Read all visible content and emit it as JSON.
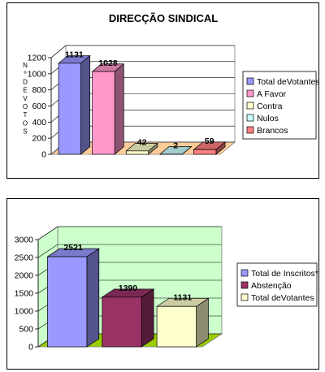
{
  "chart_data": [
    {
      "type": "bar",
      "title": "DIRECÇÃO SINDICAL",
      "ylabel": "Nº DE VOTOS",
      "ylim": [
        0,
        1200
      ],
      "yticks": [
        0,
        200,
        400,
        600,
        800,
        1000,
        1200
      ],
      "grid": true,
      "legend_position": "right",
      "series": [
        {
          "name": "Total deVotantes",
          "value": 1131,
          "color": "#9999ff"
        },
        {
          "name": "A Favor",
          "value": 1028,
          "color": "#ff99cc"
        },
        {
          "name": "Contra",
          "value": 42,
          "color": "#ffffcc"
        },
        {
          "name": "Nulos",
          "value": 2,
          "color": "#ccffff"
        },
        {
          "name": "Brancos",
          "value": 59,
          "color": "#ff8080"
        }
      ]
    },
    {
      "type": "bar",
      "ylim": [
        0,
        3000
      ],
      "yticks": [
        0,
        500,
        1000,
        1500,
        2000,
        2500,
        3000
      ],
      "grid": true,
      "legend_position": "right",
      "series": [
        {
          "name": "Total de Inscritos*",
          "value": 2521,
          "color": "#9999ff"
        },
        {
          "name": "Abstenção",
          "value": 1390,
          "color": "#993366"
        },
        {
          "name": "Total deVotantes",
          "value": 1131,
          "color": "#ffffcc"
        }
      ]
    }
  ]
}
